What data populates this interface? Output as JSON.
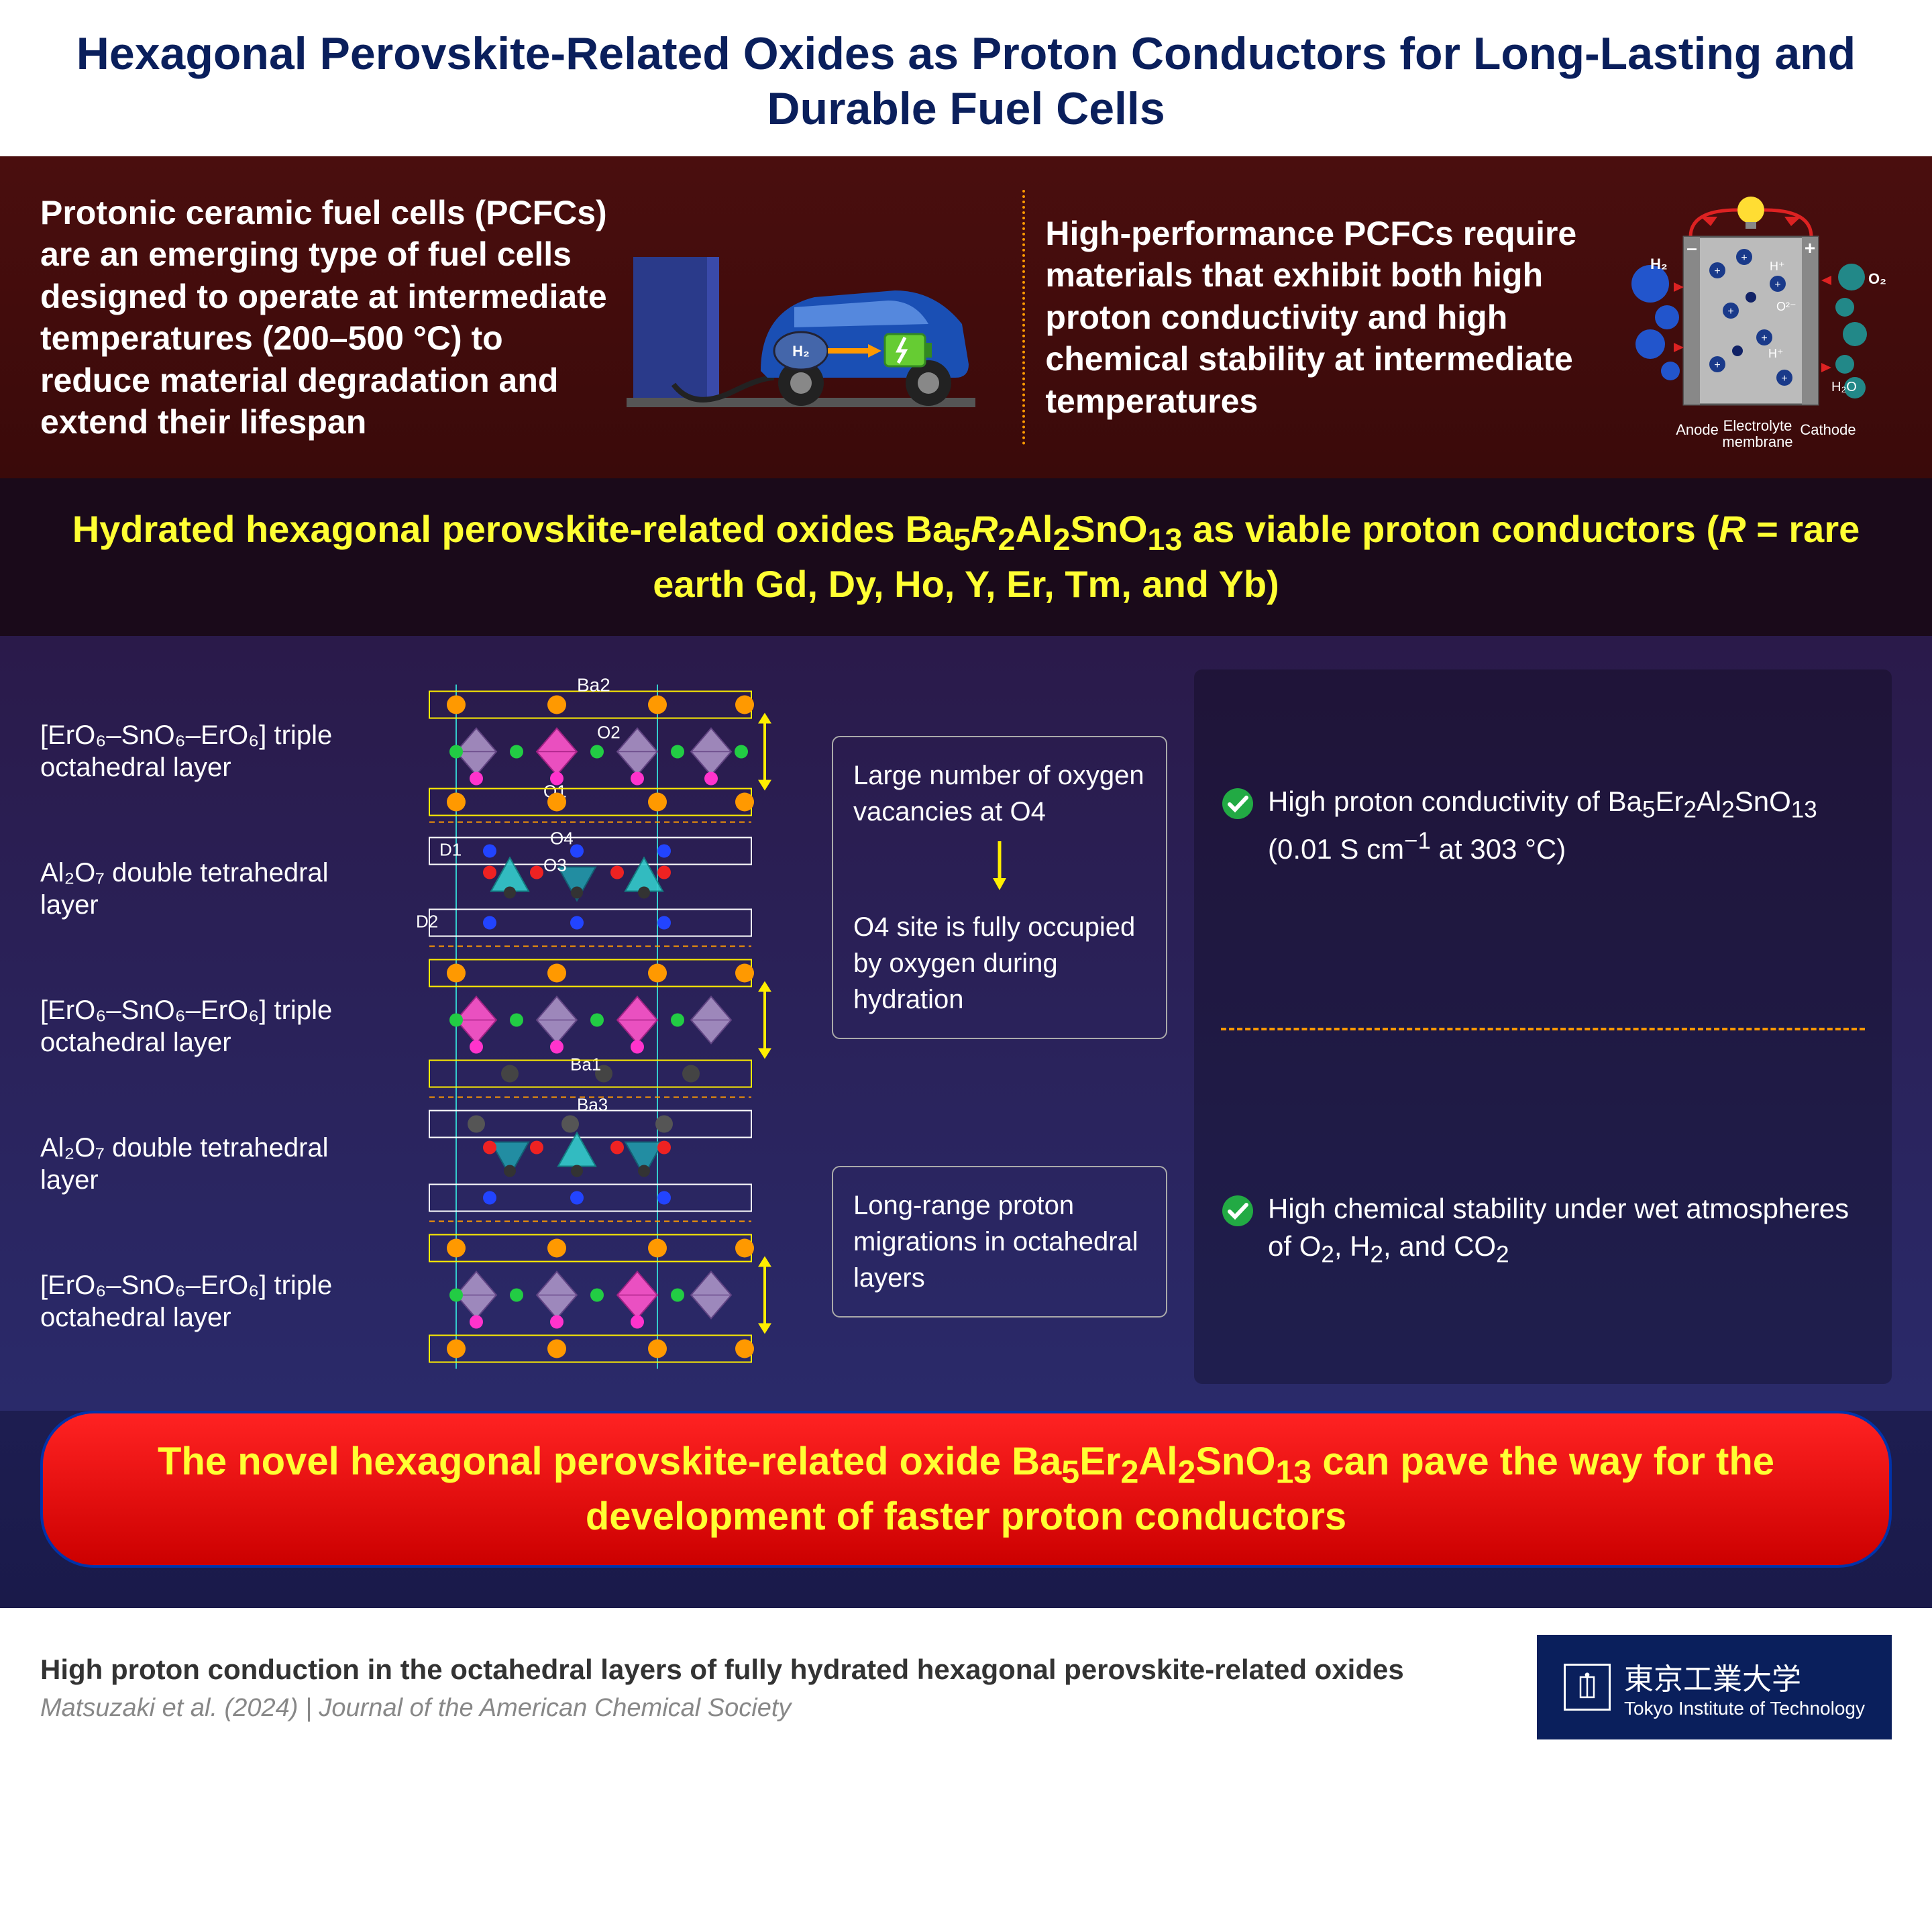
{
  "title": "Hexagonal Perovskite-Related Oxides as Proton Conductors for Long-Lasting and Durable Fuel Cells",
  "top_left_text": "Protonic ceramic fuel cells (PCFCs) are an emerging type of fuel cells designed to operate at intermediate temperatures (200–500 °C) to reduce material degradation and extend their lifespan",
  "top_right_text": "High-performance PCFCs require materials that exhibit both high proton conductivity and high chemical stability at intermediate temperatures",
  "fuelcell_labels": {
    "anode": "Anode",
    "membrane": "Electrolyte\nmembrane",
    "cathode": "Cathode",
    "h2": "H₂",
    "o2": "O₂",
    "h2o": "H₂O",
    "hplus": "H⁺",
    "o2minus": "O²⁻",
    "minus": "–",
    "plus": "+"
  },
  "yellow_banner_html": "Hydrated hexagonal perovskite-related oxides Ba<sub>5</sub><span class='ital'>R</span><sub>2</sub>Al<sub>2</sub>SnO<sub>13</sub> as viable proton conductors (<span class='ital'>R</span> = rare earth Gd, Dy, Ho, Y, Er, Tm, and Yb)",
  "layers": [
    "[ErO₆–SnO₆–ErO₆] triple octahedral layer",
    "Al₂O₇ double tetrahedral layer",
    "[ErO₆–SnO₆–ErO₆] triple octahedral layer",
    "Al₂O₇ double tetrahedral layer",
    "[ErO₆–SnO₆–ErO₆] triple octahedral layer"
  ],
  "structure_labels": {
    "ba1": "Ba1",
    "ba2": "Ba2",
    "ba3": "Ba3",
    "o1": "O1",
    "o2": "O2",
    "o3": "O3",
    "o4": "O4",
    "d1": "D1",
    "d2": "D2"
  },
  "annotations": {
    "a1": " Large number of oxygen vacancies at O4",
    "a2": "O4 site is fully occupied by oxygen during hydration",
    "a3": "Long-range proton migrations in octahedral layers"
  },
  "features": {
    "f1_html": "High proton conductivity of Ba<sub>5</sub>Er<sub>2</sub>Al<sub>2</sub>SnO<sub>13</sub> (0.01 S cm<sup>−1</sup> at 303 °C)",
    "f2_html": "High chemical stability under wet atmospheres of O<sub>2</sub>, H<sub>2</sub>, and CO<sub>2</sub>"
  },
  "red_banner_html": "The novel hexagonal perovskite-related oxide Ba<sub>5</sub>Er<sub>2</sub>Al<sub>2</sub>SnO<sub>13</sub> can pave the way for the development of faster proton conductors",
  "footer": {
    "title": "High proton conduction in the octahedral layers of fully hydrated hexagonal perovskite-related oxides",
    "citation": "Matsuzaki et al. (2024) | Journal of the American Chemical Society",
    "org_jp": "東京工業大学",
    "org_en": "Tokyo Institute of Technology"
  },
  "colors": {
    "title": "#0a1f5c",
    "top_bg_from": "#4a0e0e",
    "top_bg_to": "#3a0a0a",
    "yellow": "#ffff33",
    "main_bg_from": "#2a1a4a",
    "main_bg_to": "#2a2a6a",
    "orange": "#ff9900",
    "red": "#dd1111",
    "green": "#22aa44",
    "magenta": "#ff33cc",
    "teal": "#33cccc",
    "lime": "#88ff00",
    "darkblue": "#0a1f5c",
    "car_body": "#1a4fb4",
    "battery": "#66cc33",
    "station": "#2a3a8a"
  }
}
